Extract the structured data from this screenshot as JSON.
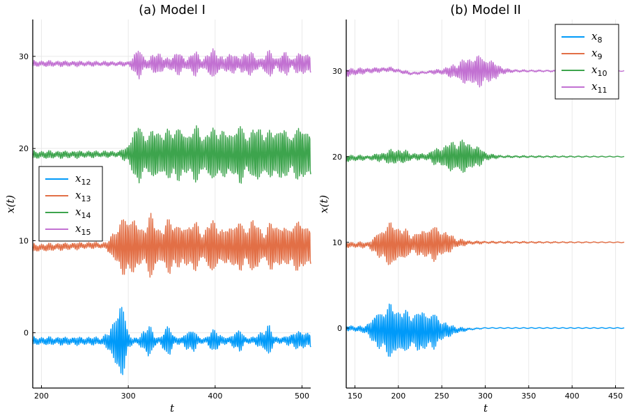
{
  "chart_data": [
    {
      "type": "line",
      "title": "(a) Model I",
      "xlabel": "t",
      "ylabel": "x(t)",
      "xlim": [
        190,
        510
      ],
      "ylim": [
        -6,
        34
      ],
      "xticks": [
        200,
        300,
        400,
        500
      ],
      "yticks": [
        0,
        10,
        20,
        30
      ],
      "grid": true,
      "legend_position": "middle-left",
      "series": [
        {
          "name": "x",
          "subscript": "12",
          "color": "#009af9",
          "offset": 0,
          "baseline": [
            [
              190,
              -0.9
            ],
            [
              280,
              -0.9
            ],
            [
              500,
              -0.8
            ]
          ],
          "envelope": [
            [
              190,
              0.4
            ],
            [
              270,
              0.4
            ],
            [
              278,
              1.0
            ],
            [
              285,
              3.2
            ],
            [
              290,
              4.2
            ],
            [
              295,
              3.3
            ],
            [
              300,
              1.2
            ],
            [
              305,
              0.3
            ],
            [
              312,
              0.3
            ],
            [
              318,
              1.4
            ],
            [
              323,
              1.9
            ],
            [
              330,
              0.6
            ],
            [
              336,
              0.3
            ],
            [
              342,
              1.3
            ],
            [
              348,
              1.6
            ],
            [
              354,
              0.4
            ],
            [
              362,
              0.3
            ],
            [
              368,
              1.2
            ],
            [
              374,
              1.4
            ],
            [
              380,
              0.4
            ],
            [
              390,
              0.3
            ],
            [
              396,
              1.1
            ],
            [
              402,
              1.3
            ],
            [
              408,
              0.4
            ],
            [
              416,
              0.3
            ],
            [
              422,
              1.0
            ],
            [
              428,
              1.2
            ],
            [
              434,
              0.4
            ],
            [
              445,
              0.3
            ],
            [
              455,
              1.2
            ],
            [
              462,
              1.6
            ],
            [
              468,
              0.4
            ],
            [
              480,
              0.3
            ],
            [
              490,
              0.9
            ],
            [
              500,
              0.9
            ]
          ]
        },
        {
          "name": "x",
          "subscript": "13",
          "color": "#e26f46",
          "offset": 10,
          "baseline": [
            [
              190,
              -0.8
            ],
            [
              260,
              -0.5
            ],
            [
              285,
              -0.6
            ],
            [
              500,
              -0.6
            ]
          ],
          "envelope": [
            [
              190,
              0.4
            ],
            [
              275,
              0.3
            ],
            [
              282,
              1.6
            ],
            [
              290,
              2.6
            ],
            [
              300,
              3.7
            ],
            [
              306,
              3.3
            ],
            [
              312,
              2.1
            ],
            [
              318,
              2.3
            ],
            [
              325,
              3.6
            ],
            [
              332,
              2.6
            ],
            [
              340,
              1.9
            ],
            [
              348,
              3.4
            ],
            [
              356,
              2.6
            ],
            [
              362,
              1.9
            ],
            [
              370,
              2.9
            ],
            [
              378,
              2.6
            ],
            [
              386,
              1.6
            ],
            [
              394,
              2.9
            ],
            [
              402,
              2.9
            ],
            [
              410,
              1.6
            ],
            [
              418,
              2.6
            ],
            [
              426,
              2.9
            ],
            [
              434,
              2.1
            ],
            [
              442,
              3.1
            ],
            [
              450,
              2.4
            ],
            [
              458,
              1.6
            ],
            [
              466,
              3.0
            ],
            [
              474,
              2.5
            ],
            [
              482,
              1.9
            ],
            [
              490,
              2.9
            ],
            [
              500,
              2.6
            ]
          ]
        },
        {
          "name": "x",
          "subscript": "14",
          "color": "#3da44d",
          "offset": 20,
          "baseline": [
            [
              190,
              -0.7
            ],
            [
              300,
              -0.6
            ],
            [
              500,
              -0.6
            ]
          ],
          "envelope": [
            [
              190,
              0.4
            ],
            [
              290,
              0.3
            ],
            [
              298,
              0.8
            ],
            [
              305,
              2.3
            ],
            [
              312,
              3.5
            ],
            [
              318,
              2.6
            ],
            [
              325,
              2.1
            ],
            [
              332,
              3.3
            ],
            [
              340,
              2.3
            ],
            [
              348,
              2.9
            ],
            [
              356,
              3.3
            ],
            [
              364,
              2.3
            ],
            [
              372,
              2.8
            ],
            [
              380,
              3.1
            ],
            [
              388,
              2.1
            ],
            [
              396,
              2.9
            ],
            [
              404,
              3.2
            ],
            [
              412,
              2.3
            ],
            [
              420,
              2.8
            ],
            [
              428,
              3.3
            ],
            [
              436,
              2.4
            ],
            [
              444,
              2.8
            ],
            [
              452,
              3.3
            ],
            [
              460,
              2.3
            ],
            [
              468,
              2.9
            ],
            [
              476,
              3.2
            ],
            [
              484,
              2.2
            ],
            [
              492,
              2.8
            ],
            [
              500,
              3.0
            ]
          ]
        },
        {
          "name": "x",
          "subscript": "15",
          "color": "#c271d2",
          "offset": 30,
          "baseline": [
            [
              190,
              -0.8
            ],
            [
              300,
              -0.8
            ],
            [
              500,
              -0.8
            ]
          ],
          "envelope": [
            [
              190,
              0.3
            ],
            [
              300,
              0.2
            ],
            [
              306,
              0.9
            ],
            [
              312,
              1.8
            ],
            [
              318,
              0.8
            ],
            [
              324,
              0.4
            ],
            [
              330,
              1.2
            ],
            [
              336,
              1.4
            ],
            [
              342,
              0.5
            ],
            [
              348,
              0.6
            ],
            [
              354,
              1.4
            ],
            [
              360,
              1.1
            ],
            [
              366,
              0.4
            ],
            [
              372,
              1.2
            ],
            [
              378,
              1.3
            ],
            [
              384,
              0.5
            ],
            [
              390,
              0.9
            ],
            [
              398,
              1.7
            ],
            [
              404,
              1.2
            ],
            [
              410,
              0.5
            ],
            [
              416,
              1.2
            ],
            [
              422,
              1.3
            ],
            [
              428,
              0.5
            ],
            [
              434,
              1.3
            ],
            [
              440,
              1.6
            ],
            [
              446,
              0.7
            ],
            [
              452,
              0.5
            ],
            [
              458,
              1.2
            ],
            [
              464,
              1.4
            ],
            [
              470,
              0.5
            ],
            [
              476,
              1.1
            ],
            [
              482,
              1.3
            ],
            [
              488,
              0.5
            ],
            [
              494,
              1.0
            ],
            [
              500,
              1.2
            ]
          ]
        }
      ]
    },
    {
      "type": "line",
      "title": "(b) Model II",
      "xlabel": "t",
      "ylabel": "x(t)",
      "xlim": [
        140,
        460
      ],
      "ylim": [
        -7,
        36
      ],
      "xticks": [
        150,
        200,
        250,
        300,
        350,
        400,
        450
      ],
      "yticks": [
        0,
        10,
        20,
        30
      ],
      "grid": true,
      "legend_position": "top-right",
      "series": [
        {
          "name": "x",
          "subscript": "8",
          "color": "#009af9",
          "offset": 0,
          "baseline": [
            [
              140,
              0.0
            ],
            [
              165,
              -0.2
            ],
            [
              200,
              -0.4
            ],
            [
              260,
              -0.3
            ],
            [
              300,
              0.0
            ],
            [
              460,
              0.0
            ]
          ],
          "envelope": [
            [
              140,
              0.3
            ],
            [
              160,
              0.3
            ],
            [
              170,
              1.4
            ],
            [
              180,
              2.5
            ],
            [
              190,
              3.2
            ],
            [
              200,
              2.9
            ],
            [
              210,
              2.3
            ],
            [
              220,
              2.3
            ],
            [
              230,
              2.5
            ],
            [
              240,
              2.1
            ],
            [
              250,
              1.3
            ],
            [
              260,
              0.6
            ],
            [
              270,
              0.3
            ],
            [
              280,
              0.1
            ],
            [
              300,
              0.0
            ],
            [
              460,
              0.0
            ]
          ]
        },
        {
          "name": "x",
          "subscript": "9",
          "color": "#e26f46",
          "offset": 10,
          "baseline": [
            [
              140,
              -0.3
            ],
            [
              170,
              -0.3
            ],
            [
              200,
              -0.2
            ],
            [
              260,
              -0.1
            ],
            [
              300,
              0.0
            ],
            [
              460,
              0.0
            ]
          ],
          "envelope": [
            [
              140,
              0.3
            ],
            [
              165,
              0.3
            ],
            [
              175,
              1.2
            ],
            [
              185,
              2.4
            ],
            [
              195,
              2.6
            ],
            [
              205,
              1.9
            ],
            [
              215,
              1.2
            ],
            [
              225,
              1.4
            ],
            [
              235,
              2.1
            ],
            [
              245,
              1.9
            ],
            [
              255,
              1.4
            ],
            [
              265,
              0.6
            ],
            [
              280,
              0.2
            ],
            [
              300,
              0.1
            ],
            [
              460,
              0.0
            ]
          ]
        },
        {
          "name": "x",
          "subscript": "10",
          "color": "#3da44d",
          "offset": 20,
          "baseline": [
            [
              140,
              -0.2
            ],
            [
              200,
              0.0
            ],
            [
              300,
              0.0
            ],
            [
              460,
              0.0
            ]
          ],
          "envelope": [
            [
              140,
              0.4
            ],
            [
              165,
              0.2
            ],
            [
              185,
              0.6
            ],
            [
              195,
              0.9
            ],
            [
              205,
              0.8
            ],
            [
              215,
              0.4
            ],
            [
              230,
              0.3
            ],
            [
              245,
              1.0
            ],
            [
              260,
              1.7
            ],
            [
              272,
              2.0
            ],
            [
              285,
              1.6
            ],
            [
              295,
              0.9
            ],
            [
              305,
              0.3
            ],
            [
              320,
              0.1
            ],
            [
              460,
              0.0
            ]
          ]
        },
        {
          "name": "x",
          "subscript": "11",
          "color": "#c271d2",
          "offset": 30,
          "baseline": [
            [
              140,
              -0.2
            ],
            [
              160,
              0.0
            ],
            [
              190,
              0.2
            ],
            [
              215,
              -0.3
            ],
            [
              240,
              -0.1
            ],
            [
              300,
              0.0
            ],
            [
              460,
              0.0
            ]
          ],
          "envelope": [
            [
              140,
              0.5
            ],
            [
              160,
              0.3
            ],
            [
              200,
              0.2
            ],
            [
              230,
              0.1
            ],
            [
              250,
              0.3
            ],
            [
              265,
              0.8
            ],
            [
              275,
              1.4
            ],
            [
              290,
              1.9
            ],
            [
              305,
              1.4
            ],
            [
              315,
              0.7
            ],
            [
              325,
              0.2
            ],
            [
              340,
              0.1
            ],
            [
              460,
              0.0
            ]
          ]
        }
      ]
    }
  ]
}
